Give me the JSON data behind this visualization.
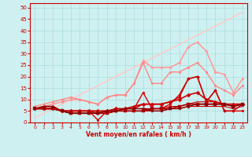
{
  "title": "",
  "xlabel": "Vent moyen/en rafales ( km/h )",
  "ylabel": "",
  "bg_color": "#cff0f0",
  "grid_color": "#aadddd",
  "x": [
    0,
    1,
    2,
    3,
    4,
    5,
    6,
    7,
    8,
    9,
    10,
    11,
    12,
    13,
    14,
    15,
    16,
    17,
    18,
    19,
    20,
    21,
    22,
    23
  ],
  "series": [
    {
      "y": [
        2,
        4,
        6,
        8,
        10,
        12,
        14,
        16,
        18,
        20,
        22,
        24,
        26,
        28,
        30,
        32,
        34,
        36,
        38,
        40,
        42,
        44,
        46,
        48
      ],
      "color": "#ffbbbb",
      "lw": 0.8,
      "marker": null,
      "ms": 0,
      "zorder": 2
    },
    {
      "y": [
        2,
        4,
        6,
        8,
        10,
        12,
        14,
        16,
        18,
        20,
        22,
        24,
        26,
        28,
        30,
        32,
        34,
        36,
        38,
        40,
        42,
        44,
        46,
        48
      ],
      "color": "#ffcccc",
      "lw": 0.8,
      "marker": null,
      "ms": 0,
      "zorder": 2
    },
    {
      "y": [
        6,
        7,
        8,
        9,
        10,
        10,
        9,
        8,
        11,
        12,
        12,
        17,
        27,
        24,
        24,
        24,
        26,
        33,
        35,
        31,
        22,
        21,
        13,
        19
      ],
      "color": "#ff9999",
      "lw": 1.0,
      "marker": "o",
      "ms": 2.0,
      "zorder": 3
    },
    {
      "y": [
        6,
        7,
        8,
        9,
        10,
        10,
        9,
        8,
        11,
        12,
        12,
        17,
        27,
        24,
        24,
        24,
        26,
        33,
        35,
        31,
        22,
        21,
        13,
        19
      ],
      "color": "#ffaaaa",
      "lw": 0.8,
      "marker": null,
      "ms": 0,
      "zorder": 2
    },
    {
      "y": [
        7,
        8,
        9,
        10,
        11,
        10,
        9,
        8,
        11,
        12,
        12,
        17,
        26,
        17,
        17,
        22,
        22,
        24,
        26,
        22,
        16,
        14,
        12,
        16
      ],
      "color": "#ff8888",
      "lw": 1.0,
      "marker": "o",
      "ms": 2.0,
      "zorder": 3
    },
    {
      "y": [
        6,
        6,
        6,
        5,
        5,
        5,
        5,
        5,
        5,
        6,
        6,
        7,
        8,
        8,
        8,
        9,
        10,
        12,
        13,
        10,
        9,
        8,
        8,
        8
      ],
      "color": "#cc0000",
      "lw": 1.2,
      "marker": "D",
      "ms": 2.5,
      "zorder": 5
    },
    {
      "y": [
        6,
        6,
        6,
        5,
        5,
        5,
        5,
        4,
        5,
        5,
        6,
        6,
        8,
        8,
        8,
        9,
        11,
        19,
        20,
        9,
        14,
        5,
        5,
        8
      ],
      "color": "#cc0000",
      "lw": 1.0,
      "marker": "D",
      "ms": 2.0,
      "zorder": 5
    },
    {
      "y": [
        6,
        6,
        6,
        5,
        4,
        4,
        4,
        4,
        4,
        5,
        5,
        5,
        5,
        6,
        6,
        6,
        7,
        8,
        8,
        8,
        8,
        8,
        7,
        8
      ],
      "color": "#aa0000",
      "lw": 1.2,
      "marker": "s",
      "ms": 2.5,
      "zorder": 5
    },
    {
      "y": [
        6,
        7,
        7,
        5,
        4,
        4,
        4,
        4,
        5,
        5,
        6,
        6,
        6,
        5,
        5,
        6,
        6,
        7,
        8,
        8,
        8,
        8,
        7,
        8
      ],
      "color": "#880000",
      "lw": 1.0,
      "marker": "*",
      "ms": 3.0,
      "zorder": 5
    },
    {
      "y": [
        6,
        7,
        7,
        5,
        5,
        5,
        5,
        1,
        5,
        5,
        6,
        6,
        13,
        6,
        6,
        8,
        12,
        19,
        20,
        9,
        14,
        5,
        5,
        5
      ],
      "color": "#dd0000",
      "lw": 1.0,
      "marker": "o",
      "ms": 2.0,
      "zorder": 4
    },
    {
      "y": [
        6,
        6,
        6,
        5,
        4,
        4,
        4,
        4,
        4,
        5,
        5,
        5,
        5,
        5,
        5,
        6,
        6,
        7,
        7,
        7,
        7,
        7,
        6,
        7
      ],
      "color": "#cc0000",
      "lw": 0.8,
      "marker": null,
      "ms": 0,
      "zorder": 3
    },
    {
      "y": [
        6,
        6,
        6,
        5,
        5,
        5,
        5,
        5,
        5,
        5,
        6,
        6,
        6,
        6,
        6,
        7,
        7,
        8,
        9,
        9,
        9,
        8,
        8,
        8
      ],
      "color": "#bb0000",
      "lw": 0.8,
      "marker": null,
      "ms": 0,
      "zorder": 3
    }
  ],
  "xlim": [
    -0.5,
    23.5
  ],
  "ylim": [
    0,
    52
  ],
  "yticks": [
    0,
    5,
    10,
    15,
    20,
    25,
    30,
    35,
    40,
    45,
    50
  ],
  "xticks": [
    0,
    1,
    2,
    3,
    4,
    5,
    6,
    7,
    8,
    9,
    10,
    11,
    12,
    13,
    14,
    15,
    16,
    17,
    18,
    19,
    20,
    21,
    22,
    23
  ]
}
